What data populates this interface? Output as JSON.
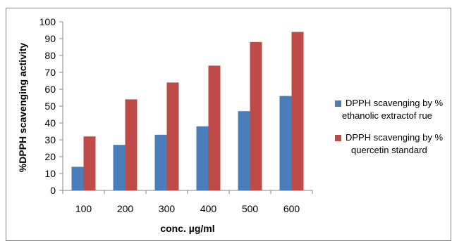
{
  "chart_data": {
    "type": "bar",
    "categories": [
      "100",
      "200",
      "300",
      "400",
      "500",
      "600"
    ],
    "series": [
      {
        "name": "DPPH scavenging by % ethanolic extractof rue",
        "name_lines": [
          "DPPH scavenging by %",
          "ethanolic extractof rue"
        ],
        "color": "#4a7ebb",
        "values": [
          14,
          27,
          33,
          38,
          47,
          56
        ]
      },
      {
        "name": "DPPH scavenging by % quercetin standard",
        "name_lines": [
          "DPPH scavenging by %",
          "quercetin standard"
        ],
        "color": "#be4b48",
        "values": [
          32,
          54,
          64,
          74,
          88,
          94
        ]
      }
    ],
    "title": "",
    "xlabel": "conc. µg/ml",
    "ylabel": "%DPPH scavenging activity",
    "ylim": [
      0,
      100
    ],
    "yticks": [
      "0",
      "10",
      "20",
      "30",
      "40",
      "50",
      "60",
      "70",
      "80",
      "90",
      "100"
    ],
    "grid": false,
    "legend_position": "right"
  }
}
